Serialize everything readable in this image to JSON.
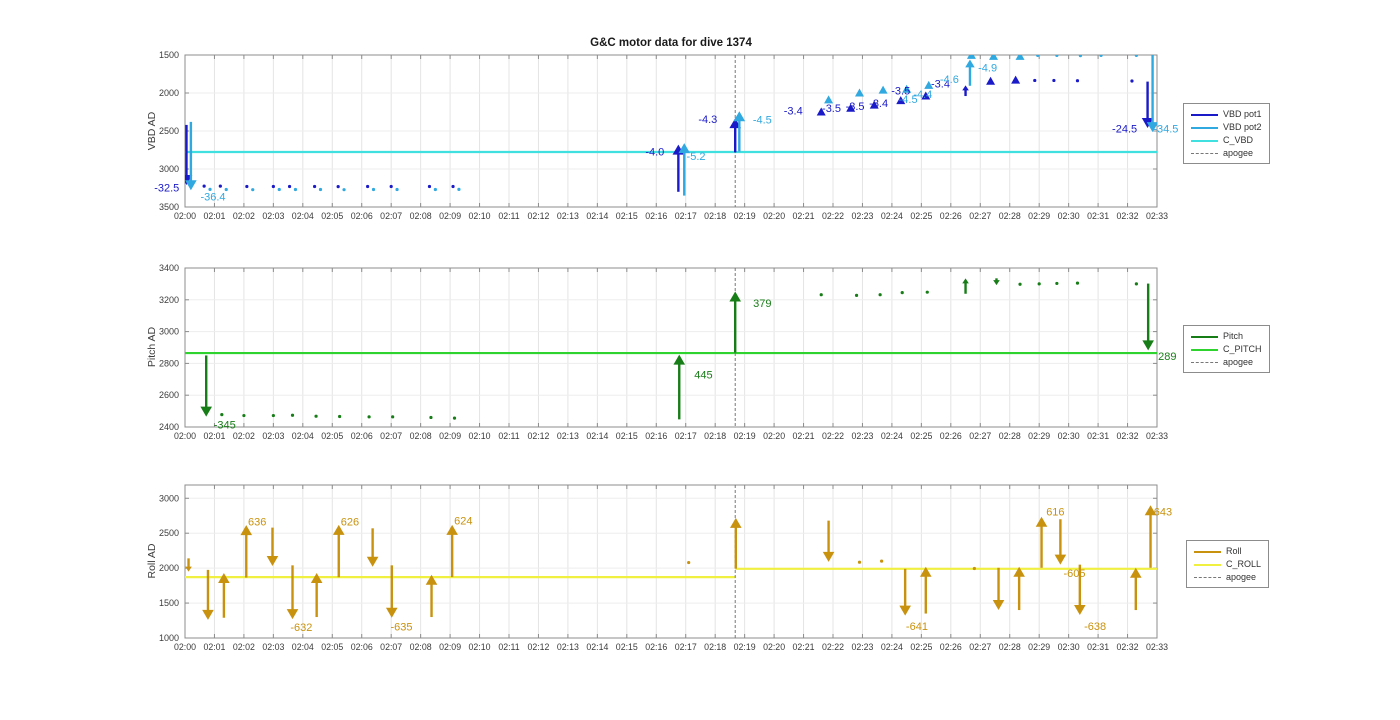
{
  "title": "G&C motor data for dive 1374",
  "x_axis": {
    "t_min": 0,
    "t_max": 33,
    "tick_labels": [
      "02:00",
      "02:01",
      "02:02",
      "02:03",
      "02:04",
      "02:05",
      "02:06",
      "02:07",
      "02:08",
      "02:09",
      "02:10",
      "02:11",
      "02:12",
      "02:13",
      "02:14",
      "02:15",
      "02:16",
      "02:17",
      "02:18",
      "02:19",
      "02:20",
      "02:21",
      "02:22",
      "02:23",
      "02:24",
      "02:25",
      "02:26",
      "02:27",
      "02:28",
      "02:29",
      "02:30",
      "02:31",
      "02:32",
      "02:33"
    ]
  },
  "apogee_t": 18.68,
  "chart_data": [
    {
      "type": "scatter",
      "name": "vbd",
      "ylabel": "VBD AD",
      "ylim": [
        1500,
        3500
      ],
      "yticks": [
        1500,
        2000,
        2500,
        3000,
        3500
      ],
      "legend": [
        {
          "label": "VBD pot1",
          "color": "#1a1ac8",
          "dash": false
        },
        {
          "label": "VBD pot2",
          "color": "#30a8e0",
          "dash": false
        },
        {
          "label": "C_VBD",
          "color": "#40e0e0",
          "dash": false
        },
        {
          "label": "apogee",
          "color": "#777777",
          "dash": true
        }
      ],
      "ref_lines": [
        {
          "name": "C_VBD",
          "color": "#40e0e0",
          "segments": [
            {
              "t0": 0,
              "t1": 33,
              "v": 2776
            }
          ]
        }
      ],
      "series": [
        {
          "name": "VBD pot1",
          "color": "#1a1ac8",
          "arrows": [
            {
              "t": 0.05,
              "from": 2420,
              "to": 3210
            },
            {
              "t": 16.75,
              "from": 3300,
              "to": 2680
            },
            {
              "t": 18.68,
              "from": 2780,
              "to": 2330
            },
            {
              "t": 26.5,
              "from": 2040,
              "to": 1900
            },
            {
              "t": 32.68,
              "from": 1850,
              "to": 2460
            }
          ],
          "tri_up": [
            [
              21.6,
              2250
            ],
            [
              22.6,
              2200
            ],
            [
              23.4,
              2160
            ],
            [
              24.3,
              2100
            ],
            [
              25.15,
              2040
            ],
            [
              27.35,
              1845
            ],
            [
              28.2,
              1830
            ]
          ],
          "dots": [
            [
              0.65,
              3225
            ],
            [
              1.2,
              3225
            ],
            [
              2.1,
              3230
            ],
            [
              3.0,
              3230
            ],
            [
              3.55,
              3230
            ],
            [
              4.4,
              3230
            ],
            [
              5.2,
              3232
            ],
            [
              6.2,
              3230
            ],
            [
              7.0,
              3230
            ],
            [
              8.3,
              3230
            ],
            [
              9.1,
              3230
            ],
            [
              28.85,
              1835
            ],
            [
              29.5,
              1835
            ],
            [
              30.3,
              1838
            ],
            [
              32.15,
              1842
            ]
          ]
        },
        {
          "name": "VBD pot2",
          "color": "#30a8e0",
          "arrows": [
            {
              "t": 0.2,
              "from": 2380,
              "to": 3280
            },
            {
              "t": 16.95,
              "from": 3350,
              "to": 2660
            },
            {
              "t": 18.82,
              "from": 2770,
              "to": 2240
            },
            {
              "t": 26.65,
              "from": 1905,
              "to": 1560
            },
            {
              "t": 32.85,
              "from": 1500,
              "to": 2515
            }
          ],
          "tri_up": [
            [
              21.85,
              2090
            ],
            [
              22.9,
              2000
            ],
            [
              23.7,
              1962
            ],
            [
              24.5,
              1950
            ],
            [
              25.25,
              1900
            ],
            [
              26.7,
              1505
            ],
            [
              27.45,
              1518
            ],
            [
              28.35,
              1518
            ]
          ],
          "dots": [
            [
              0.85,
              3268
            ],
            [
              1.4,
              3270
            ],
            [
              2.3,
              3272
            ],
            [
              3.2,
              3270
            ],
            [
              3.75,
              3270
            ],
            [
              4.6,
              3270
            ],
            [
              5.4,
              3272
            ],
            [
              6.4,
              3270
            ],
            [
              7.2,
              3270
            ],
            [
              8.5,
              3270
            ],
            [
              9.3,
              3268
            ],
            [
              28.95,
              1505
            ],
            [
              29.6,
              1505
            ],
            [
              30.4,
              1508
            ],
            [
              31.1,
              1505
            ],
            [
              32.3,
              1505
            ]
          ]
        }
      ],
      "annotations": [
        {
          "text": "-32.5",
          "s": 0,
          "t": -0.62,
          "v": 3245
        },
        {
          "text": "-36.4",
          "s": 1,
          "t": 0.95,
          "v": 3360
        },
        {
          "text": "-4.0",
          "s": 0,
          "t": 15.95,
          "v": 2770
        },
        {
          "text": "-5.2",
          "s": 1,
          "t": 17.35,
          "v": 2830
        },
        {
          "text": "-4.3",
          "s": 0,
          "t": 17.75,
          "v": 2340
        },
        {
          "text": "-4.5",
          "s": 1,
          "t": 19.6,
          "v": 2350
        },
        {
          "text": "-3.4",
          "s": 0,
          "t": 20.65,
          "v": 2230
        },
        {
          "text": "-3.5",
          "s": 0,
          "t": 21.95,
          "v": 2200
        },
        {
          "text": "-3.5",
          "s": 0,
          "t": 22.75,
          "v": 2170
        },
        {
          "text": "-3.4",
          "s": 0,
          "t": 23.55,
          "v": 2130
        },
        {
          "text": "-3.5",
          "s": 0,
          "t": 24.3,
          "v": 1970
        },
        {
          "text": "-4.5",
          "s": 1,
          "t": 24.55,
          "v": 2080
        },
        {
          "text": "-4.4",
          "s": 1,
          "t": 25.05,
          "v": 2010
        },
        {
          "text": "-3.4",
          "s": 0,
          "t": 25.65,
          "v": 1875
        },
        {
          "text": "-4.6",
          "s": 1,
          "t": 25.95,
          "v": 1815
        },
        {
          "text": "-4.9",
          "s": 1,
          "t": 27.25,
          "v": 1665
        },
        {
          "text": "-24.5",
          "s": 0,
          "t": 31.9,
          "v": 2465
        },
        {
          "text": "-34.5",
          "s": 1,
          "t": 33.3,
          "v": 2470
        }
      ]
    },
    {
      "type": "scatter",
      "name": "pitch",
      "ylabel": "Pitch AD",
      "ylim": [
        3400,
        2400
      ],
      "yticks": [
        2400,
        2600,
        2800,
        3000,
        3200,
        3400
      ],
      "legend": [
        {
          "label": "Pitch",
          "color": "#177d17",
          "dash": false
        },
        {
          "label": "C_PITCH",
          "color": "#2ed32e",
          "dash": false
        },
        {
          "label": "apogee",
          "color": "#777777",
          "dash": true
        }
      ],
      "ref_lines": [
        {
          "name": "C_PITCH",
          "color": "#2ed32e",
          "segments": [
            {
              "t0": 0,
              "t1": 33,
              "v": 2865
            }
          ]
        }
      ],
      "series": [
        {
          "name": "Pitch",
          "color": "#177d17",
          "arrows": [
            {
              "t": 0.72,
              "from": 2850,
              "to": 2465
            },
            {
              "t": 16.78,
              "from": 2448,
              "to": 2855
            },
            {
              "t": 18.68,
              "from": 2868,
              "to": 3252
            },
            {
              "t": 26.5,
              "from": 3238,
              "to": 3335
            },
            {
              "t": 27.55,
              "from": 3335,
              "to": 3292
            },
            {
              "t": 32.7,
              "from": 3302,
              "to": 2882
            }
          ],
          "tri_up": [],
          "dots": [
            [
              1.25,
              2478
            ],
            [
              2.0,
              2472
            ],
            [
              3.0,
              2472
            ],
            [
              3.65,
              2474
            ],
            [
              4.45,
              2468
            ],
            [
              5.25,
              2466
            ],
            [
              6.25,
              2464
            ],
            [
              7.05,
              2464
            ],
            [
              8.35,
              2460
            ],
            [
              9.15,
              2456
            ],
            [
              21.6,
              3232
            ],
            [
              22.8,
              3228
            ],
            [
              23.6,
              3232
            ],
            [
              24.35,
              3245
            ],
            [
              25.2,
              3248
            ],
            [
              28.35,
              3298
            ],
            [
              29.0,
              3300
            ],
            [
              29.6,
              3303
            ],
            [
              30.3,
              3305
            ],
            [
              32.3,
              3300
            ]
          ]
        }
      ],
      "annotations": [
        {
          "text": "-345",
          "s": 0,
          "t": 1.35,
          "v": 2415
        },
        {
          "text": "445",
          "s": 0,
          "t": 17.6,
          "v": 2730
        },
        {
          "text": "379",
          "s": 0,
          "t": 19.6,
          "v": 3180
        },
        {
          "text": "289",
          "s": 0,
          "t": 33.35,
          "v": 2845
        }
      ]
    },
    {
      "type": "scatter",
      "name": "roll",
      "ylabel": "Roll AD",
      "ylim": [
        3190,
        1000
      ],
      "yticks": [
        1000,
        1500,
        2000,
        2500,
        3000
      ],
      "legend": [
        {
          "label": "Roll",
          "color": "#c8920f",
          "dash": false
        },
        {
          "label": "C_ROLL",
          "color": "#f0f040",
          "dash": false
        },
        {
          "label": "apogee",
          "color": "#777777",
          "dash": true
        }
      ],
      "ref_lines": [
        {
          "name": "C_ROLL",
          "color": "#f0f040",
          "segments": [
            {
              "t0": 0,
              "t1": 18.68,
              "v": 1871
            },
            {
              "t0": 18.68,
              "t1": 33,
              "v": 1990
            }
          ]
        }
      ],
      "series": [
        {
          "name": "Roll",
          "color": "#c8920f",
          "arrows": [
            {
              "t": 0.12,
              "from": 2140,
              "to": 1950
            },
            {
              "t": 0.78,
              "from": 1975,
              "to": 1260
            },
            {
              "t": 1.32,
              "from": 1290,
              "to": 1930
            },
            {
              "t": 2.08,
              "from": 1865,
              "to": 2615
            },
            {
              "t": 2.97,
              "from": 2580,
              "to": 2030
            },
            {
              "t": 3.65,
              "from": 2040,
              "to": 1270
            },
            {
              "t": 4.47,
              "from": 1300,
              "to": 1930
            },
            {
              "t": 5.22,
              "from": 1870,
              "to": 2620
            },
            {
              "t": 6.37,
              "from": 2570,
              "to": 2020
            },
            {
              "t": 7.02,
              "from": 2040,
              "to": 1290
            },
            {
              "t": 8.37,
              "from": 1300,
              "to": 1905
            },
            {
              "t": 9.07,
              "from": 1872,
              "to": 2620
            },
            {
              "t": 18.7,
              "from": 1992,
              "to": 2720
            },
            {
              "t": 21.85,
              "from": 2680,
              "to": 2090
            },
            {
              "t": 24.45,
              "from": 1990,
              "to": 1320
            },
            {
              "t": 25.15,
              "from": 1350,
              "to": 2020
            },
            {
              "t": 27.62,
              "from": 2005,
              "to": 1400
            },
            {
              "t": 28.32,
              "from": 1400,
              "to": 2020
            },
            {
              "t": 29.08,
              "from": 2005,
              "to": 2735
            },
            {
              "t": 29.72,
              "from": 2700,
              "to": 2050
            },
            {
              "t": 30.38,
              "from": 2050,
              "to": 1330
            },
            {
              "t": 32.28,
              "from": 1400,
              "to": 2005
            },
            {
              "t": 32.78,
              "from": 2005,
              "to": 2900
            }
          ],
          "tri_up": [],
          "dots": [
            [
              17.1,
              2080
            ],
            [
              22.9,
              2085
            ],
            [
              23.65,
              2100
            ],
            [
              26.8,
              1995
            ]
          ]
        }
      ],
      "annotations": [
        {
          "text": "636",
          "s": 0,
          "t": 2.45,
          "v": 2670
        },
        {
          "text": "-632",
          "s": 0,
          "t": 3.95,
          "v": 1155
        },
        {
          "text": "626",
          "s": 0,
          "t": 5.6,
          "v": 2670
        },
        {
          "text": "-635",
          "s": 0,
          "t": 7.35,
          "v": 1165
        },
        {
          "text": "624",
          "s": 0,
          "t": 9.45,
          "v": 2680
        },
        {
          "text": "-641",
          "s": 0,
          "t": 24.85,
          "v": 1170
        },
        {
          "text": "616",
          "s": 0,
          "t": 29.55,
          "v": 2810
        },
        {
          "text": "-605",
          "s": 0,
          "t": 30.2,
          "v": 1930
        },
        {
          "text": "-638",
          "s": 0,
          "t": 30.9,
          "v": 1175
        },
        {
          "text": "643",
          "s": 0,
          "t": 33.2,
          "v": 2810
        }
      ]
    }
  ]
}
